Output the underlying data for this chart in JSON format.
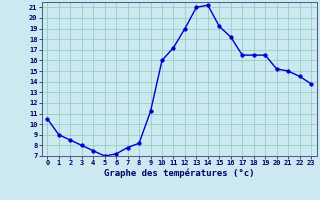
{
  "hours": [
    0,
    1,
    2,
    3,
    4,
    5,
    6,
    7,
    8,
    9,
    10,
    11,
    12,
    13,
    14,
    15,
    16,
    17,
    18,
    19,
    20,
    21,
    22,
    23
  ],
  "temperatures": [
    10.5,
    9.0,
    8.5,
    8.0,
    7.5,
    7.0,
    7.2,
    7.8,
    8.2,
    11.2,
    16.0,
    17.2,
    19.0,
    21.0,
    21.2,
    19.2,
    18.2,
    16.5,
    16.5,
    16.5,
    15.2,
    15.0,
    14.5,
    13.8
  ],
  "xlabel": "Graphe des températures (°c)",
  "ylim": [
    7,
    21.5
  ],
  "xlim": [
    -0.5,
    23.5
  ],
  "yticks": [
    7,
    8,
    9,
    10,
    11,
    12,
    13,
    14,
    15,
    16,
    17,
    18,
    19,
    20,
    21
  ],
  "xticks": [
    0,
    1,
    2,
    3,
    4,
    5,
    6,
    7,
    8,
    9,
    10,
    11,
    12,
    13,
    14,
    15,
    16,
    17,
    18,
    19,
    20,
    21,
    22,
    23
  ],
  "line_color": "#0000cc",
  "marker_color": "#0000cc",
  "bg_color": "#cce8f0",
  "grid_color": "#88ccbb",
  "axis_bg_color": "#000066",
  "tick_label_color": "#000066",
  "xlabel_color": "#000066",
  "line_width": 1.0,
  "marker_size": 2.5
}
